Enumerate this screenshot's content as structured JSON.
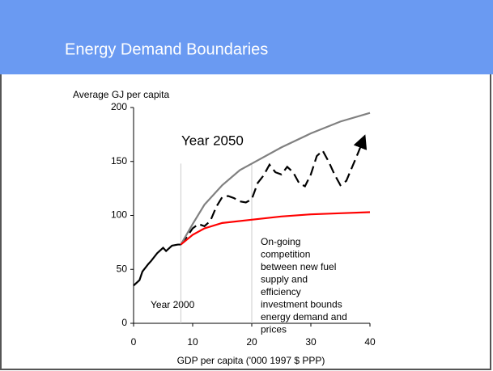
{
  "slide_title": "Energy Demand Boundaries",
  "chart_data": {
    "type": "line",
    "y_label": "Average GJ per capita",
    "x_label": "GDP per capita ('000 1997 $ PPP)",
    "xlim": [
      0,
      40
    ],
    "xticks": [
      0,
      10,
      20,
      30,
      40
    ],
    "ylim": [
      0,
      200
    ],
    "yticks": [
      0,
      50,
      100,
      150,
      200
    ],
    "reference_lines": [
      8,
      20
    ],
    "annotations": [
      "Year 2050",
      "Year 2000"
    ],
    "note": [
      "On-going",
      "competition",
      "between new fuel",
      "supply and",
      "efficiency",
      "investment bounds",
      "energy demand and",
      "prices"
    ],
    "series": [
      {
        "color": "#000000",
        "style": "solid",
        "x": [
          0,
          1,
          1.5,
          2.5,
          3,
          4,
          5,
          5.5,
          6.5,
          7.5,
          8
        ],
        "values": [
          35,
          40,
          48,
          55,
          58,
          65,
          70,
          67,
          72,
          73,
          73
        ]
      },
      {
        "color": "#000000",
        "style": "dashed",
        "x": [
          8,
          9,
          10,
          11,
          12,
          13,
          14,
          15,
          16,
          17,
          18,
          19,
          20,
          21,
          22,
          23,
          24,
          25,
          26,
          27,
          28,
          29,
          30,
          31,
          32,
          33,
          34,
          35,
          36,
          37,
          38,
          39
        ],
        "values": [
          73,
          80,
          88,
          92,
          90,
          95,
          108,
          117,
          118,
          116,
          113,
          112,
          115,
          130,
          137,
          147,
          140,
          138,
          145,
          140,
          130,
          127,
          138,
          155,
          160,
          150,
          138,
          128,
          132,
          145,
          158,
          172
        ]
      },
      {
        "color": "#808080",
        "style": "solid",
        "x": [
          8,
          10,
          12,
          15,
          18,
          20,
          25,
          30,
          35,
          40
        ],
        "values": [
          73,
          92,
          110,
          128,
          142,
          148,
          163,
          176,
          187,
          195
        ]
      },
      {
        "color": "#ff0000",
        "style": "solid",
        "x": [
          8,
          10,
          12,
          15,
          20,
          25,
          30,
          35,
          40
        ],
        "values": [
          73,
          82,
          88,
          93,
          96,
          99,
          101,
          102,
          103
        ]
      }
    ]
  }
}
